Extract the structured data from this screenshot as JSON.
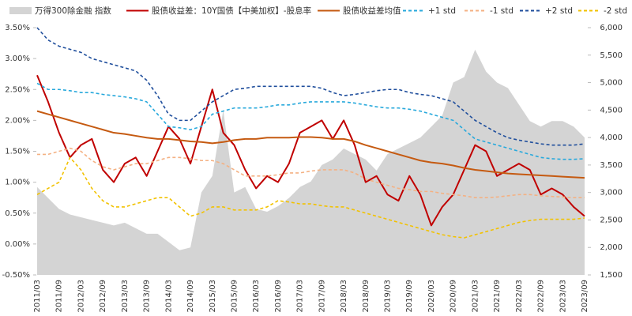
{
  "chart_data": {
    "type": "line",
    "categories": [
      "2011/03",
      null,
      "2011/09",
      null,
      "2012/03",
      null,
      "2012/09",
      null,
      "2013/03",
      null,
      "2013/09",
      null,
      "2014/03",
      null,
      "2014/09",
      null,
      "2015/03",
      null,
      "2015/09",
      null,
      "2016/03",
      null,
      "2016/09",
      null,
      "2017/03",
      null,
      "2017/09",
      null,
      "2018/03",
      null,
      "2018/09",
      null,
      "2019/03",
      null,
      "2019/09",
      null,
      "2020/03",
      null,
      "2020/09",
      null,
      "2021/03",
      null,
      "2021/09",
      null,
      "2022/03",
      null,
      "2022/09",
      null,
      "2023/03",
      null,
      "2023/09"
    ],
    "ylim": [
      -0.5,
      3.5
    ],
    "yticks": [
      {
        "value": -0.5,
        "label": "-0.50%"
      },
      {
        "value": 0,
        "label": "0.00%"
      },
      {
        "value": 0.5,
        "label": "0.50%"
      },
      {
        "value": 1,
        "label": "1.00%"
      },
      {
        "value": 1.5,
        "label": "1.50%"
      },
      {
        "value": 2,
        "label": "2.00%"
      },
      {
        "value": 2.5,
        "label": "2.50%"
      },
      {
        "value": 3,
        "label": "3.00%"
      },
      {
        "value": 3.5,
        "label": "3.50%"
      }
    ],
    "y2lim": [
      1500,
      6000
    ],
    "y2ticks": [
      {
        "value": 1500,
        "label": "1,500"
      },
      {
        "value": 2000,
        "label": "2,000"
      },
      {
        "value": 2500,
        "label": "2,500"
      },
      {
        "value": 3000,
        "label": "3,000"
      },
      {
        "value": 3500,
        "label": "3,500"
      },
      {
        "value": 4000,
        "label": "4,000"
      },
      {
        "value": 4500,
        "label": "4,500"
      },
      {
        "value": 5000,
        "label": "5,000"
      },
      {
        "value": 5500,
        "label": "5,500"
      },
      {
        "value": 6000,
        "label": "6,000"
      }
    ],
    "series": [
      {
        "name": "万得300除金融 指数",
        "color": "#d4d4d4",
        "kind": "area",
        "axis": "y2",
        "values": [
          3100,
          2900,
          2700,
          2600,
          2550,
          2500,
          2450,
          2400,
          2450,
          2350,
          2250,
          2250,
          2100,
          1950,
          2000,
          3000,
          3300,
          4500,
          3000,
          3100,
          2700,
          2650,
          2750,
          2900,
          3100,
          3200,
          3500,
          3600,
          3800,
          3700,
          3600,
          3400,
          3700,
          3800,
          3900,
          4000,
          4200,
          4400,
          5000,
          5100,
          5600,
          5200,
          5000,
          4900,
          4600,
          4300,
          4200,
          4300,
          4300,
          4200,
          4000
        ]
      },
      {
        "name": "股债收益差：10Y国债【中美加权】-股息率",
        "color": "#c00000",
        "kind": "line",
        "dashed": false,
        "values": [
          2.73,
          2.3,
          1.8,
          1.4,
          1.6,
          1.7,
          1.2,
          1.0,
          1.3,
          1.4,
          1.1,
          1.5,
          1.9,
          1.7,
          1.3,
          1.9,
          2.5,
          1.8,
          1.6,
          1.2,
          0.9,
          1.1,
          1.0,
          1.3,
          1.8,
          1.9,
          2.0,
          1.7,
          2.0,
          1.6,
          1.0,
          1.1,
          0.8,
          0.7,
          1.1,
          0.8,
          0.3,
          0.6,
          0.8,
          1.2,
          1.6,
          1.5,
          1.1,
          1.2,
          1.3,
          1.2,
          0.8,
          0.9,
          0.8,
          0.6,
          0.45
        ]
      },
      {
        "name": "股债收益差均值",
        "color": "#c55a11",
        "kind": "line",
        "dashed": false,
        "values": [
          2.15,
          2.1,
          2.05,
          2.0,
          1.95,
          1.9,
          1.85,
          1.8,
          1.78,
          1.75,
          1.72,
          1.7,
          1.7,
          1.68,
          1.66,
          1.65,
          1.63,
          1.65,
          1.68,
          1.7,
          1.7,
          1.72,
          1.72,
          1.72,
          1.73,
          1.73,
          1.72,
          1.7,
          1.7,
          1.66,
          1.6,
          1.55,
          1.5,
          1.45,
          1.4,
          1.35,
          1.32,
          1.3,
          1.27,
          1.23,
          1.2,
          1.18,
          1.16,
          1.14,
          1.13,
          1.12,
          1.11,
          1.1,
          1.09,
          1.08,
          1.07
        ]
      },
      {
        "name": "+1 std",
        "color": "#28a9dc",
        "kind": "line",
        "dashed": true,
        "values": [
          2.6,
          2.5,
          2.5,
          2.48,
          2.45,
          2.45,
          2.42,
          2.4,
          2.38,
          2.35,
          2.3,
          2.1,
          1.9,
          1.88,
          1.85,
          1.9,
          2.1,
          2.15,
          2.2,
          2.2,
          2.2,
          2.22,
          2.25,
          2.25,
          2.28,
          2.3,
          2.3,
          2.3,
          2.3,
          2.28,
          2.25,
          2.22,
          2.2,
          2.2,
          2.18,
          2.15,
          2.1,
          2.05,
          2.0,
          1.85,
          1.7,
          1.65,
          1.6,
          1.55,
          1.5,
          1.45,
          1.4,
          1.38,
          1.37,
          1.37,
          1.38
        ]
      },
      {
        "name": "-1 std",
        "color": "#f4b183",
        "kind": "line",
        "dashed": true,
        "values": [
          1.45,
          1.45,
          1.5,
          1.55,
          1.5,
          1.35,
          1.25,
          1.2,
          1.25,
          1.3,
          1.3,
          1.35,
          1.4,
          1.4,
          1.38,
          1.35,
          1.35,
          1.3,
          1.2,
          1.1,
          1.1,
          1.1,
          1.12,
          1.15,
          1.15,
          1.18,
          1.2,
          1.2,
          1.2,
          1.15,
          1.05,
          1.0,
          0.95,
          0.9,
          0.88,
          0.85,
          0.85,
          0.82,
          0.8,
          0.78,
          0.75,
          0.75,
          0.76,
          0.78,
          0.8,
          0.8,
          0.78,
          0.77,
          0.76,
          0.75,
          0.75
        ]
      },
      {
        "name": "+2 std",
        "color": "#1f4e9c",
        "kind": "line",
        "dashed": true,
        "values": [
          3.5,
          3.3,
          3.2,
          3.15,
          3.1,
          3.0,
          2.95,
          2.9,
          2.85,
          2.8,
          2.65,
          2.4,
          2.1,
          2.0,
          2.0,
          2.15,
          2.3,
          2.4,
          2.5,
          2.52,
          2.55,
          2.55,
          2.55,
          2.55,
          2.55,
          2.55,
          2.52,
          2.45,
          2.4,
          2.42,
          2.45,
          2.48,
          2.5,
          2.5,
          2.45,
          2.42,
          2.4,
          2.35,
          2.3,
          2.15,
          2.0,
          1.9,
          1.8,
          1.72,
          1.68,
          1.65,
          1.62,
          1.6,
          1.6,
          1.6,
          1.62
        ]
      },
      {
        "name": "-2 std",
        "color": "#f2c200",
        "kind": "line",
        "dashed": true,
        "values": [
          0.8,
          0.9,
          1.0,
          1.4,
          1.2,
          0.9,
          0.7,
          0.6,
          0.6,
          0.65,
          0.7,
          0.75,
          0.75,
          0.6,
          0.45,
          0.5,
          0.6,
          0.6,
          0.55,
          0.55,
          0.55,
          0.6,
          0.7,
          0.68,
          0.65,
          0.65,
          0.62,
          0.6,
          0.6,
          0.55,
          0.5,
          0.45,
          0.4,
          0.35,
          0.3,
          0.25,
          0.2,
          0.15,
          0.12,
          0.1,
          0.15,
          0.2,
          0.25,
          0.3,
          0.35,
          0.38,
          0.4,
          0.4,
          0.4,
          0.4,
          0.42
        ]
      }
    ]
  }
}
